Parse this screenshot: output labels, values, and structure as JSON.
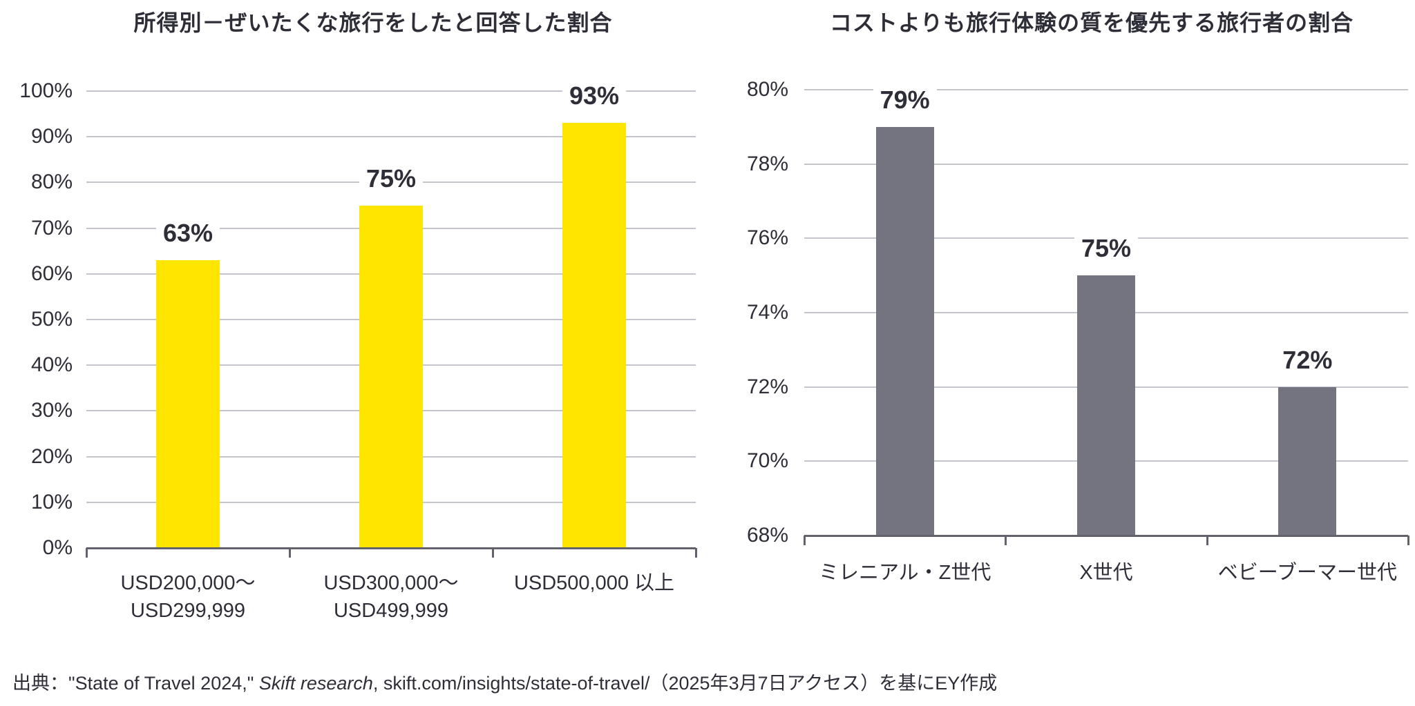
{
  "colors": {
    "text": "#2e2e38",
    "gridline": "#c4c4cc",
    "axis": "#62626c",
    "background": "#ffffff",
    "ey_yellow": "#ffe600",
    "ey_gray": "#747480"
  },
  "chart_data": [
    {
      "type": "bar",
      "title": "所得別－ぜいたくな旅行をしたと回答した割合",
      "categories": [
        "USD200,000～\nUSD299,999",
        "USD300,000～\nUSD499,999",
        "USD500,000 以上"
      ],
      "values": [
        63,
        75,
        93
      ],
      "value_labels": [
        "63%",
        "75%",
        "93%"
      ],
      "ylim": [
        0,
        100
      ],
      "y_step": 10,
      "y_tick_labels": [
        "0%",
        "10%",
        "20%",
        "30%",
        "40%",
        "50%",
        "60%",
        "70%",
        "80%",
        "90%",
        "100%"
      ],
      "bar_color": "#ffe600",
      "grid": true,
      "legend": "none"
    },
    {
      "type": "bar",
      "title": "コストよりも旅行体験の質を優先する旅行者の割合",
      "categories": [
        "ミレニアル・Z世代",
        "X世代",
        "ベビーブーマー世代"
      ],
      "values": [
        79,
        75,
        72
      ],
      "value_labels": [
        "79%",
        "75%",
        "72%"
      ],
      "ylim": [
        68,
        80
      ],
      "y_step": 2,
      "y_tick_labels": [
        "68%",
        "70%",
        "72%",
        "74%",
        "76%",
        "78%",
        "80%"
      ],
      "bar_color": "#747480",
      "grid": true,
      "legend": "none"
    }
  ],
  "footer": {
    "prefix": "出典：\"State of Travel 2024,\" ",
    "italic": "Skift research",
    "suffix": ", skift.com/insights/state-of-travel/（2025年3月7日アクセス）を基にEY作成"
  }
}
